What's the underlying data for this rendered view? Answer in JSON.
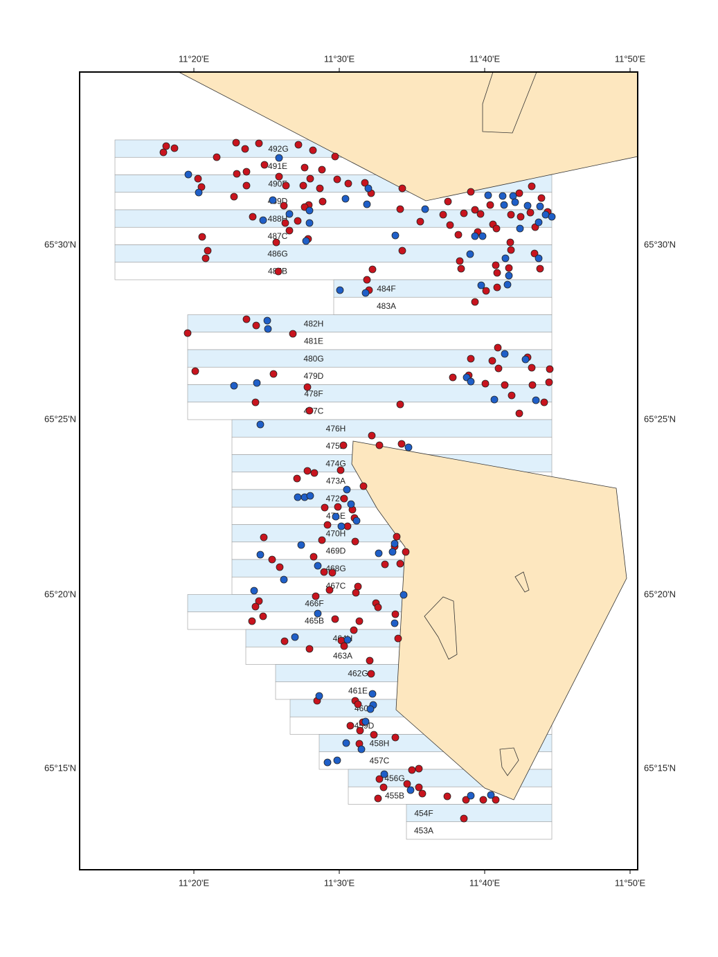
{
  "map": {
    "x_ticks": [
      "11°20'E",
      "11°30'E",
      "11°40'E",
      "11°50'E"
    ],
    "y_ticks": [
      "65°30'N",
      "65°25'N",
      "65°20'N",
      "65°15'N"
    ],
    "blocks": [
      "492G",
      "491E",
      "490F",
      "489D",
      "488H",
      "487C",
      "486G",
      "485B",
      "484F",
      "483A",
      "482H",
      "481E",
      "480G",
      "479D",
      "478F",
      "477C",
      "476H",
      "475D",
      "474G",
      "473A",
      "472C",
      "471E",
      "470H",
      "469D",
      "468G",
      "467C",
      "466F",
      "465B",
      "464H",
      "463A",
      "462G",
      "461E",
      "460B",
      "459D",
      "458H",
      "457C",
      "456G",
      "455B",
      "454F",
      "453A"
    ]
  }
}
